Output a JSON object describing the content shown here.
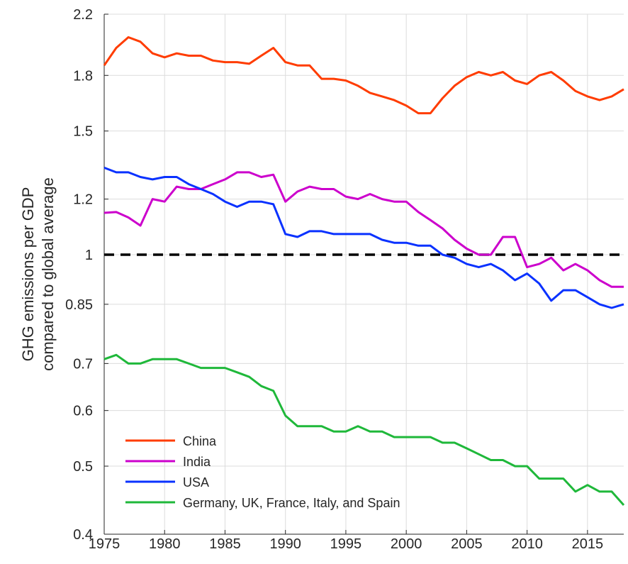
{
  "chart_data": {
    "type": "line",
    "ylabel": [
      "GHG emissions per GDP",
      "compared to global average"
    ],
    "x": [
      1975,
      1976,
      1977,
      1978,
      1979,
      1980,
      1981,
      1982,
      1983,
      1984,
      1985,
      1986,
      1987,
      1988,
      1989,
      1990,
      1991,
      1992,
      1993,
      1994,
      1995,
      1996,
      1997,
      1998,
      1999,
      2000,
      2001,
      2002,
      2003,
      2004,
      2005,
      2006,
      2007,
      2008,
      2009,
      2010,
      2011,
      2012,
      2013,
      2014,
      2015,
      2016,
      2017,
      2018
    ],
    "series": [
      {
        "name": "China",
        "color": "#ff3c00",
        "values": [
          1.86,
          1.97,
          2.04,
          2.01,
          1.935,
          1.91,
          1.935,
          1.92,
          1.92,
          1.89,
          1.88,
          1.88,
          1.87,
          1.92,
          1.97,
          1.88,
          1.86,
          1.86,
          1.78,
          1.78,
          1.77,
          1.74,
          1.7,
          1.68,
          1.66,
          1.63,
          1.59,
          1.59,
          1.67,
          1.74,
          1.79,
          1.82,
          1.8,
          1.82,
          1.77,
          1.75,
          1.8,
          1.82,
          1.77,
          1.71,
          1.68,
          1.66,
          1.68,
          1.72
        ]
      },
      {
        "name": "India",
        "color": "#cc00cc",
        "values": [
          1.147,
          1.15,
          1.13,
          1.1,
          1.2,
          1.19,
          1.25,
          1.24,
          1.24,
          1.26,
          1.28,
          1.31,
          1.31,
          1.29,
          1.3,
          1.19,
          1.23,
          1.25,
          1.24,
          1.24,
          1.21,
          1.2,
          1.22,
          1.2,
          1.19,
          1.19,
          1.15,
          1.12,
          1.09,
          1.05,
          1.02,
          1.0,
          1.0,
          1.06,
          1.06,
          0.96,
          0.97,
          0.99,
          0.95,
          0.97,
          0.95,
          0.92,
          0.9,
          0.9
        ]
      },
      {
        "name": "USA",
        "color": "#0a32ff",
        "values": [
          1.33,
          1.31,
          1.31,
          1.29,
          1.28,
          1.29,
          1.29,
          1.26,
          1.24,
          1.22,
          1.19,
          1.17,
          1.19,
          1.19,
          1.18,
          1.07,
          1.06,
          1.08,
          1.08,
          1.07,
          1.07,
          1.07,
          1.07,
          1.05,
          1.04,
          1.04,
          1.03,
          1.03,
          1.0,
          0.99,
          0.97,
          0.96,
          0.97,
          0.95,
          0.92,
          0.94,
          0.91,
          0.86,
          0.89,
          0.89,
          0.87,
          0.85,
          0.84,
          0.85
        ]
      },
      {
        "name": "Germany, UK, France, Italy, and Spain",
        "color": "#1fb83a",
        "values": [
          0.71,
          0.72,
          0.7,
          0.7,
          0.71,
          0.71,
          0.71,
          0.7,
          0.69,
          0.69,
          0.69,
          0.68,
          0.67,
          0.65,
          0.64,
          0.59,
          0.57,
          0.57,
          0.57,
          0.56,
          0.56,
          0.57,
          0.56,
          0.56,
          0.55,
          0.55,
          0.55,
          0.55,
          0.54,
          0.54,
          0.53,
          0.52,
          0.51,
          0.51,
          0.5,
          0.5,
          0.48,
          0.48,
          0.48,
          0.46,
          0.47,
          0.46,
          0.46,
          0.44
        ]
      }
    ],
    "reference_line": 1,
    "xlim": [
      1975,
      2018
    ],
    "xticks": [
      1975,
      1980,
      1985,
      1990,
      1995,
      2000,
      2005,
      2010,
      2015
    ],
    "ylim": [
      0.4,
      2.2
    ],
    "yticks": [
      0.4,
      0.5,
      0.6,
      0.7,
      0.85,
      1,
      1.2,
      1.5,
      1.8,
      2.2
    ],
    "y_scale": "log",
    "grid": true,
    "legend": "lower left"
  }
}
